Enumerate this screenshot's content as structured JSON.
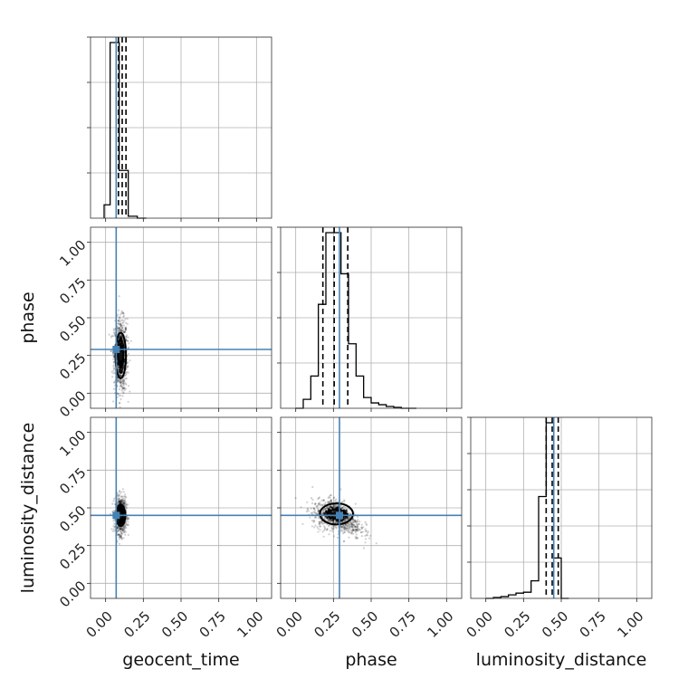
{
  "chart_data": {
    "type": "corner",
    "parameters": [
      "geocent_time",
      "phase",
      "luminosity_distance"
    ],
    "axis_ticks": [
      "0.00",
      "0.25",
      "0.50",
      "0.75",
      "1.00"
    ],
    "axis_range": [
      -0.1,
      1.1
    ],
    "truth_color": "#4682b4",
    "sample_color": "#000000",
    "truths": {
      "geocent_time": 0.07,
      "phase": 0.29,
      "luminosity_distance": 0.45
    },
    "quantiles": {
      "geocent_time": [
        0.085,
        0.11,
        0.135
      ],
      "phase": [
        0.18,
        0.255,
        0.345
      ],
      "luminosity_distance": [
        0.4,
        0.44,
        0.48
      ]
    },
    "histograms": {
      "geocent_time": {
        "bin_edges": [
          -0.01,
          0.03,
          0.09,
          0.15,
          0.21,
          0.27
        ],
        "counts": [
          0.07,
          0.92,
          0.25,
          0.01,
          0.0
        ],
        "grid_lines": 4
      },
      "phase": {
        "bin_edges": [
          0.0,
          0.05,
          0.1,
          0.15,
          0.2,
          0.25,
          0.3,
          0.35,
          0.4,
          0.45,
          0.5,
          0.55,
          0.6,
          0.65,
          0.7,
          0.75,
          0.8
        ],
        "counts": [
          0.0,
          0.05,
          0.18,
          0.58,
          0.98,
          0.98,
          0.75,
          0.36,
          0.18,
          0.06,
          0.03,
          0.02,
          0.01,
          0.005,
          0.0,
          0.0
        ],
        "grid_lines": 4
      },
      "luminosity_distance": {
        "bin_edges": [
          0.0,
          0.05,
          0.1,
          0.15,
          0.2,
          0.25,
          0.3,
          0.35,
          0.4,
          0.45,
          0.5,
          0.55
        ],
        "counts": [
          0.0,
          0.005,
          0.01,
          0.02,
          0.03,
          0.035,
          0.1,
          0.58,
          1.0,
          0.23,
          0.0
        ],
        "grid_lines": 5
      }
    },
    "joint_2d": [
      {
        "x": "geocent_time",
        "y": "phase",
        "center": [
          0.1,
          0.25
        ],
        "spread": [
          0.022,
          0.12
        ],
        "contours": [
          {
            "x_radius": 0.018,
            "y_radius": 0.07
          },
          {
            "x_radius": 0.035,
            "y_radius": 0.15
          }
        ]
      },
      {
        "x": "geocent_time",
        "y": "luminosity_distance",
        "center": [
          0.1,
          0.45
        ],
        "spread": [
          0.018,
          0.06
        ],
        "contours": [
          {
            "x_radius": 0.015,
            "y_radius": 0.04
          },
          {
            "x_radius": 0.03,
            "y_radius": 0.07
          }
        ]
      },
      {
        "x": "phase",
        "y": "luminosity_distance",
        "center": [
          0.27,
          0.46
        ],
        "spread": [
          0.08,
          0.05
        ],
        "contours": [
          {
            "x_radius": 0.06,
            "y_radius": 0.03
          },
          {
            "x_radius": 0.11,
            "y_radius": 0.07
          }
        ]
      }
    ]
  }
}
